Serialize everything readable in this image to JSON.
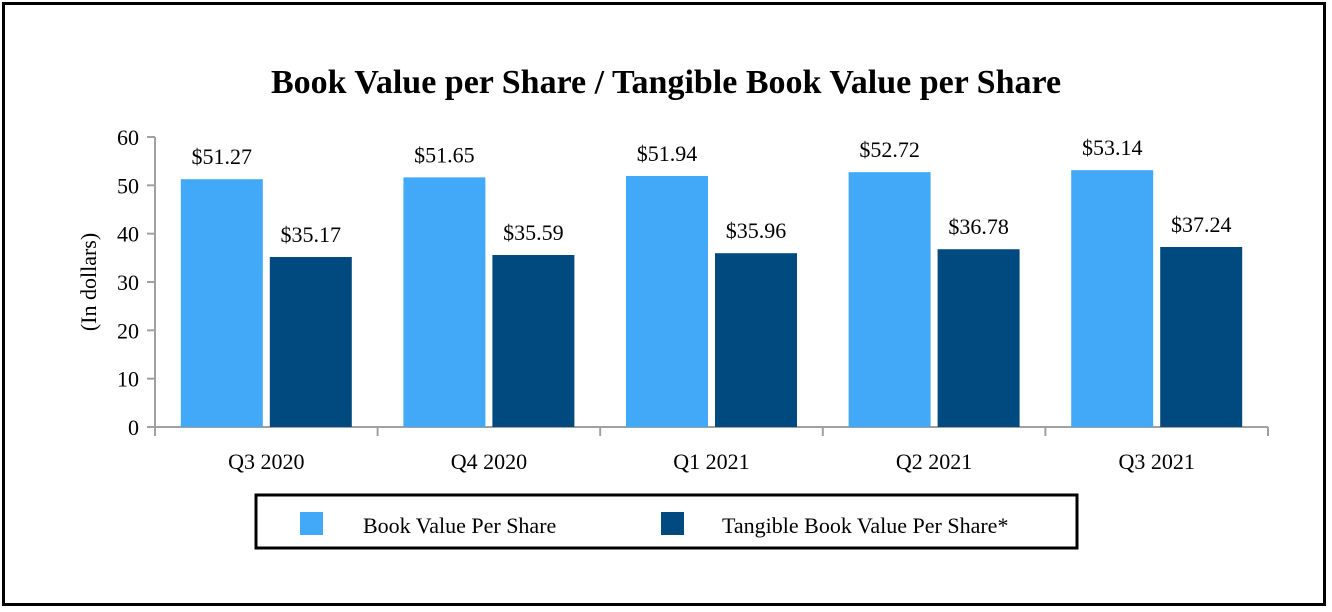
{
  "chart_data": {
    "type": "bar",
    "title": "Book Value per Share / Tangible Book Value per Share",
    "ylabel": "(In dollars)",
    "xlabel": "",
    "ylim": [
      0,
      60
    ],
    "yticks": [
      0,
      10,
      20,
      30,
      40,
      50,
      60
    ],
    "categories": [
      "Q3 2020",
      "Q4 2020",
      "Q1 2021",
      "Q2 2021",
      "Q3 2021"
    ],
    "series": [
      {
        "name": "Book Value Per Share",
        "color": "#41a9f7",
        "values": [
          51.27,
          51.65,
          51.94,
          52.72,
          53.14
        ],
        "labels": [
          "$51.27",
          "$51.65",
          "$51.94",
          "$52.72",
          "$53.14"
        ]
      },
      {
        "name": "Tangible Book Value Per Share*",
        "color": "#004a7f",
        "values": [
          35.17,
          35.59,
          35.96,
          36.78,
          37.24
        ],
        "labels": [
          "$35.17",
          "$35.59",
          "$35.96",
          "$36.78",
          "$37.24"
        ]
      }
    ],
    "grid": false,
    "legend_position": "bottom"
  }
}
